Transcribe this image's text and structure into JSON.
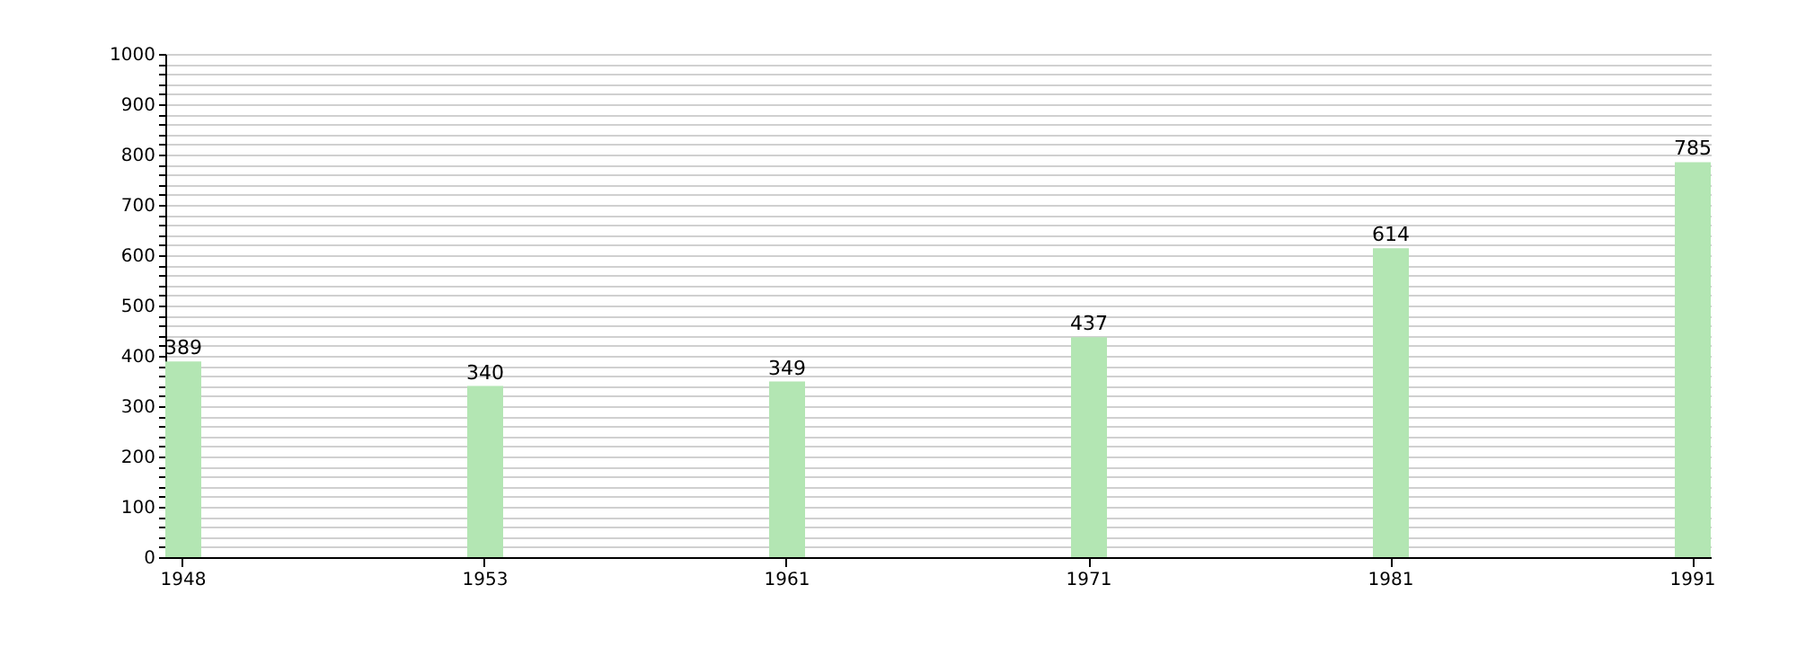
{
  "chart_data": {
    "type": "bar",
    "categories": [
      "1948",
      "1953",
      "1961",
      "1971",
      "1981",
      "1991"
    ],
    "values": [
      389,
      340,
      349,
      437,
      614,
      785
    ],
    "color": "#b3e6b3",
    "data_labels": true,
    "grid": "y",
    "ylim": [
      0,
      1000
    ],
    "yticks": [
      0,
      {
        "value": 20,
        "label": null
      },
      {
        "value": 40,
        "label": null
      },
      {
        "value": 60,
        "label": null
      },
      {
        "value": 80,
        "label": null
      },
      100,
      {
        "value": 120,
        "label": null
      },
      {
        "value": 140,
        "label": null
      },
      {
        "value": 160,
        "label": null
      },
      {
        "value": 180,
        "label": null
      },
      200,
      {
        "value": 220,
        "label": null
      },
      {
        "value": 240,
        "label": null
      },
      {
        "value": 260,
        "label": null
      },
      {
        "value": 280,
        "label": null
      },
      300,
      {
        "value": 320,
        "label": null
      },
      {
        "value": 340,
        "label": null
      },
      {
        "value": 360,
        "label": null
      },
      {
        "value": 380,
        "label": null
      },
      400,
      {
        "value": 420,
        "label": null
      },
      {
        "value": 440,
        "label": null
      },
      {
        "value": 460,
        "label": null
      },
      {
        "value": 480,
        "label": null
      },
      500,
      {
        "value": 520,
        "label": null
      },
      {
        "value": 540,
        "label": null
      },
      {
        "value": 560,
        "label": null
      },
      {
        "value": 580,
        "label": null
      },
      600,
      {
        "value": 620,
        "label": null
      },
      {
        "value": 640,
        "label": null
      },
      {
        "value": 660,
        "label": null
      },
      {
        "value": 680,
        "label": null
      },
      700,
      {
        "value": 720,
        "label": null
      },
      {
        "value": 740,
        "label": null
      },
      {
        "value": 760,
        "label": null
      },
      {
        "value": 780,
        "label": null
      },
      800,
      {
        "value": 820,
        "label": null
      },
      {
        "value": 840,
        "label": null
      },
      {
        "value": 860,
        "label": null
      },
      {
        "value": 880,
        "label": null
      },
      900,
      {
        "value": 920,
        "label": null
      },
      {
        "value": 940,
        "label": null
      },
      {
        "value": 960,
        "label": null
      },
      {
        "value": 980,
        "label": null
      },
      1000
    ]
  }
}
